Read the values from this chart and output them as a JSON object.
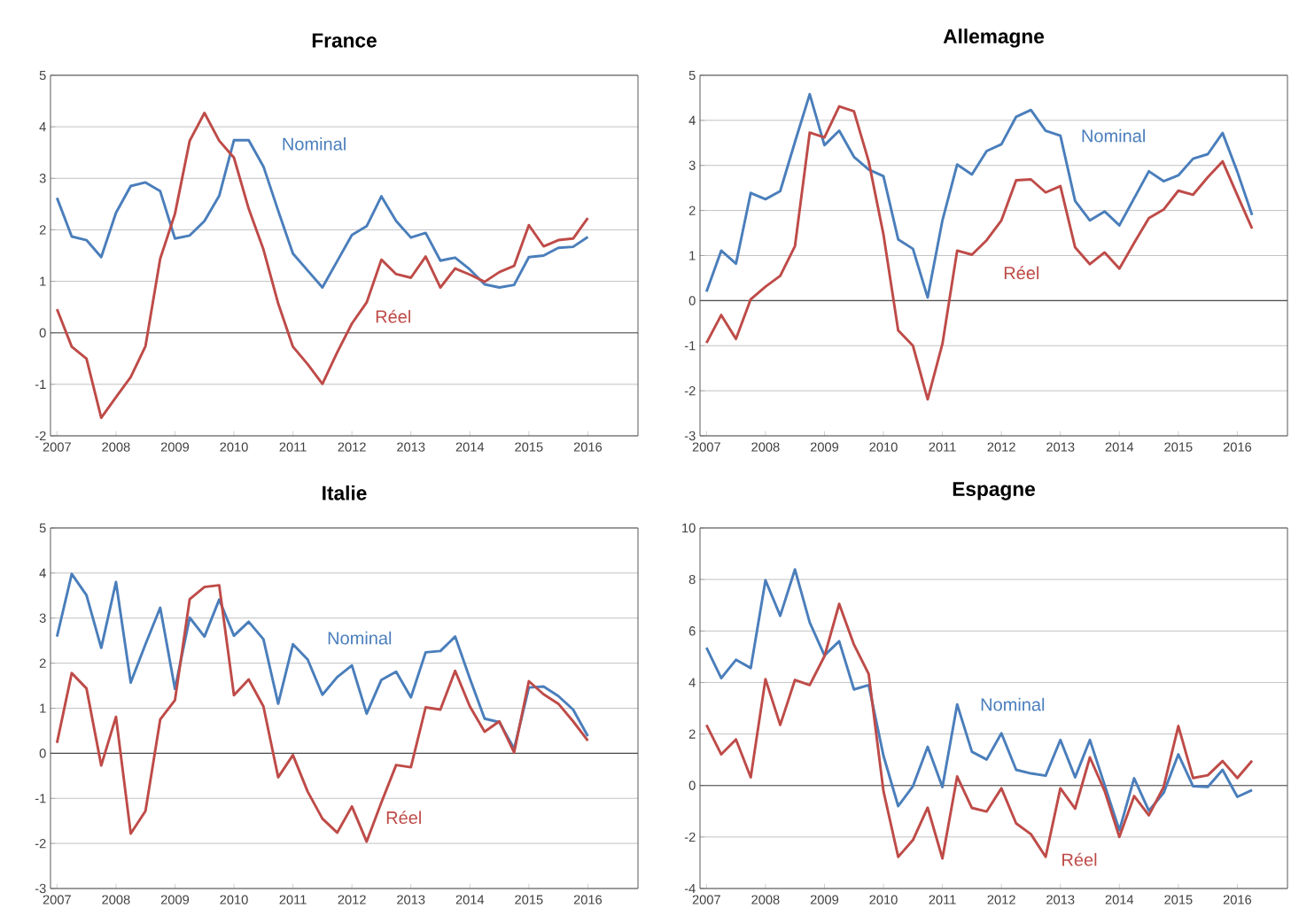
{
  "chart_data": [
    {
      "type": "line",
      "title": "France",
      "grid": "y",
      "marker": "none",
      "x": [
        2007,
        2007.25,
        2007.5,
        2007.75,
        2008,
        2008.25,
        2008.5,
        2008.75,
        2009,
        2009.25,
        2009.5,
        2009.75,
        2010,
        2010.25,
        2010.5,
        2010.75,
        2011,
        2011.25,
        2011.5,
        2011.75,
        2012,
        2012.25,
        2012.5,
        2012.75,
        2013,
        2013.25,
        2013.5,
        2013.75,
        2014,
        2014.25,
        2014.5,
        2014.75,
        2015,
        2015.25,
        2015.5,
        2015.75,
        2016
      ],
      "series": [
        {
          "name": "Nominal",
          "color": "#4a7ebb",
          "values": [
            2.62,
            1.87,
            1.8,
            1.47,
            2.33,
            2.85,
            2.92,
            2.75,
            1.83,
            1.89,
            2.17,
            2.66,
            3.74,
            3.74,
            3.23,
            2.37,
            1.54,
            1.21,
            0.88,
            1.39,
            1.9,
            2.07,
            2.65,
            2.17,
            1.85,
            1.94,
            1.4,
            1.46,
            1.23,
            0.94,
            0.88,
            0.93,
            1.47,
            1.5,
            1.65,
            1.67,
            1.86
          ]
        },
        {
          "name": "Réel",
          "color": "#be4b48",
          "values": [
            0.46,
            -0.27,
            -0.5,
            -1.65,
            -1.25,
            -0.86,
            -0.26,
            1.44,
            2.31,
            3.73,
            4.27,
            3.73,
            3.4,
            2.41,
            1.62,
            0.57,
            -0.27,
            -0.61,
            -0.99,
            -0.38,
            0.18,
            0.59,
            1.42,
            1.14,
            1.07,
            1.48,
            0.88,
            1.25,
            1.13,
            0.99,
            1.18,
            1.3,
            2.09,
            1.68,
            1.8,
            1.83,
            2.23
          ]
        }
      ],
      "xlim": [
        2006.89,
        2016.85
      ],
      "ylim": [
        -2,
        5
      ],
      "xticks": [
        2007,
        2008,
        2009,
        2010,
        2011,
        2012,
        2013,
        2014,
        2015,
        2016
      ],
      "yticks": [
        -2,
        -1,
        0,
        1,
        2,
        3,
        4,
        5
      ]
    },
    {
      "type": "line",
      "title": "Allemagne",
      "grid": "y",
      "marker": "none",
      "x": [
        2007,
        2007.25,
        2007.5,
        2007.75,
        2008,
        2008.25,
        2008.5,
        2008.75,
        2009,
        2009.25,
        2009.5,
        2009.75,
        2010,
        2010.25,
        2010.5,
        2010.75,
        2011,
        2011.25,
        2011.5,
        2011.75,
        2012,
        2012.25,
        2012.5,
        2012.75,
        2013,
        2013.25,
        2013.5,
        2013.75,
        2014,
        2014.25,
        2014.5,
        2014.75,
        2015,
        2015.25,
        2015.5,
        2015.75,
        2016,
        2016.25
      ],
      "series": [
        {
          "name": "Nominal",
          "color": "#4a7ebb",
          "values": [
            0.2,
            1.11,
            0.82,
            2.39,
            2.25,
            2.43,
            3.52,
            4.58,
            3.45,
            3.77,
            3.19,
            2.91,
            2.76,
            1.36,
            1.15,
            0.07,
            1.78,
            3.02,
            2.8,
            3.32,
            3.47,
            4.08,
            4.23,
            3.77,
            3.66,
            2.21,
            1.78,
            1.98,
            1.67,
            2.27,
            2.87,
            2.65,
            2.78,
            3.15,
            3.25,
            3.72,
            2.86,
            1.9
          ]
        },
        {
          "name": "Réel",
          "color": "#be4b48",
          "values": [
            -0.94,
            -0.32,
            -0.85,
            0.03,
            0.31,
            0.55,
            1.21,
            3.73,
            3.62,
            4.31,
            4.2,
            3.09,
            1.47,
            -0.66,
            -1.0,
            -2.19,
            -0.96,
            1.11,
            1.02,
            1.34,
            1.78,
            2.67,
            2.69,
            2.4,
            2.54,
            1.18,
            0.81,
            1.07,
            0.71,
            1.28,
            1.83,
            2.02,
            2.44,
            2.35,
            2.74,
            3.09,
            2.34,
            1.6
          ]
        }
      ],
      "xlim": [
        2006.89,
        2016.85
      ],
      "ylim": [
        -3,
        5
      ],
      "xticks": [
        2007,
        2008,
        2009,
        2010,
        2011,
        2012,
        2013,
        2014,
        2015,
        2016
      ],
      "yticks": [
        -3,
        -2,
        -1,
        0,
        1,
        2,
        3,
        4,
        5
      ]
    },
    {
      "type": "line",
      "title": "Italie",
      "grid": "y",
      "marker": "none",
      "x": [
        2007,
        2007.25,
        2007.5,
        2007.75,
        2008,
        2008.25,
        2008.5,
        2008.75,
        2009,
        2009.25,
        2009.5,
        2009.75,
        2010,
        2010.25,
        2010.5,
        2010.75,
        2011,
        2011.25,
        2011.5,
        2011.75,
        2012,
        2012.25,
        2012.5,
        2012.75,
        2013,
        2013.25,
        2013.5,
        2013.75,
        2014,
        2014.25,
        2014.5,
        2014.75,
        2015,
        2015.25,
        2015.5,
        2015.75,
        2016
      ],
      "series": [
        {
          "name": "Nominal",
          "color": "#4a7ebb",
          "values": [
            2.59,
            3.98,
            3.51,
            2.34,
            3.8,
            1.57,
            2.42,
            3.23,
            1.43,
            3.01,
            2.59,
            3.41,
            2.61,
            2.92,
            2.53,
            1.1,
            2.42,
            2.08,
            1.3,
            1.69,
            1.95,
            0.88,
            1.63,
            1.81,
            1.24,
            2.24,
            2.27,
            2.59,
            1.66,
            0.77,
            0.69,
            0.1,
            1.46,
            1.48,
            1.27,
            0.97,
            0.38
          ]
        },
        {
          "name": "Réel",
          "color": "#be4b48",
          "values": [
            0.23,
            1.78,
            1.44,
            -0.27,
            0.81,
            -1.78,
            -1.28,
            0.75,
            1.18,
            3.42,
            3.69,
            3.73,
            1.29,
            1.64,
            1.04,
            -0.53,
            -0.04,
            -0.85,
            -1.45,
            -1.76,
            -1.18,
            -1.96,
            -1.09,
            -0.26,
            -0.31,
            1.02,
            0.97,
            1.83,
            1.04,
            0.48,
            0.71,
            0.02,
            1.6,
            1.31,
            1.1,
            0.71,
            0.28
          ]
        }
      ],
      "xlim": [
        2006.89,
        2016.85
      ],
      "ylim": [
        -3,
        5
      ],
      "xticks": [
        2007,
        2008,
        2009,
        2010,
        2011,
        2012,
        2013,
        2014,
        2015,
        2016
      ],
      "yticks": [
        -3,
        -2,
        -1,
        0,
        1,
        2,
        3,
        4,
        5
      ]
    },
    {
      "type": "line",
      "title": "Espagne",
      "grid": "y",
      "marker": "none",
      "x": [
        2007,
        2007.25,
        2007.5,
        2007.75,
        2008,
        2008.25,
        2008.5,
        2008.75,
        2009,
        2009.25,
        2009.5,
        2009.75,
        2010,
        2010.25,
        2010.5,
        2010.75,
        2011,
        2011.25,
        2011.5,
        2011.75,
        2012,
        2012.25,
        2012.5,
        2012.75,
        2013,
        2013.25,
        2013.5,
        2013.75,
        2014,
        2014.25,
        2014.5,
        2014.75,
        2015,
        2015.25,
        2015.5,
        2015.75,
        2016,
        2016.25
      ],
      "series": [
        {
          "name": "Nominal",
          "color": "#4a7ebb",
          "values": [
            5.35,
            4.17,
            4.88,
            4.56,
            7.97,
            6.59,
            8.39,
            6.33,
            5.05,
            5.6,
            3.73,
            3.9,
            1.16,
            -0.8,
            -0.03,
            1.5,
            -0.06,
            3.15,
            1.31,
            1.01,
            2.03,
            0.61,
            0.47,
            0.38,
            1.77,
            0.32,
            1.77,
            0.02,
            -1.74,
            0.28,
            -0.98,
            -0.29,
            1.21,
            -0.03,
            -0.05,
            0.61,
            -0.44,
            -0.18
          ]
        },
        {
          "name": "Réel",
          "color": "#be4b48",
          "values": [
            2.35,
            1.21,
            1.79,
            0.32,
            4.13,
            2.35,
            4.1,
            3.9,
            5.02,
            7.05,
            5.47,
            4.33,
            -0.21,
            -2.77,
            -2.12,
            -0.86,
            -2.83,
            0.35,
            -0.87,
            -1.01,
            -0.11,
            -1.47,
            -1.89,
            -2.77,
            -0.11,
            -0.9,
            1.09,
            -0.21,
            -2.0,
            -0.41,
            -1.16,
            -0.06,
            2.31,
            0.29,
            0.4,
            0.95,
            0.29,
            0.96
          ]
        }
      ],
      "xlim": [
        2006.89,
        2016.85
      ],
      "ylim": [
        -4,
        10
      ],
      "xticks": [
        2007,
        2008,
        2009,
        2010,
        2011,
        2012,
        2013,
        2014,
        2015,
        2016
      ],
      "yticks": [
        -4,
        -2,
        0,
        2,
        4,
        6,
        8,
        10
      ]
    }
  ]
}
